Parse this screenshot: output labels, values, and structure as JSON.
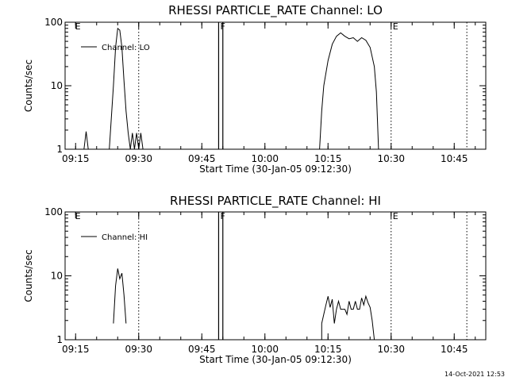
{
  "footer": {
    "timestamp": "14-Oct-2021 12:53"
  },
  "chart_data": [
    {
      "type": "line",
      "title": "RHESSI PARTICLE_RATE Channel: LO",
      "xlabel": "Start Time (30-Jan-05 09:12:30)",
      "ylabel": "Counts/sec",
      "y_scale": "log",
      "ylim": [
        1,
        100
      ],
      "xlim": [
        "09:12:30",
        "10:52:30"
      ],
      "x_ticks": [
        "09:15",
        "09:30",
        "09:45",
        "10:00",
        "10:15",
        "10:30",
        "10:45"
      ],
      "y_ticks": [
        "1",
        "10",
        "100"
      ],
      "grid": false,
      "legend_position": "top-left",
      "series": [
        {
          "name": "Channel: LO",
          "color": "#000000",
          "segments": [
            [
              [
                "09:17:00",
                1
              ],
              [
                "09:17:30",
                1.9
              ],
              [
                "09:18:00",
                1
              ]
            ],
            [
              [
                "09:23:00",
                1
              ],
              [
                "09:24:00",
                10
              ],
              [
                "09:24:30",
                40
              ],
              [
                "09:25:00",
                80
              ],
              [
                "09:25:30",
                75
              ],
              [
                "09:26:00",
                40
              ],
              [
                "09:26:30",
                12
              ],
              [
                "09:27:00",
                4
              ],
              [
                "09:27:30",
                1.8
              ],
              [
                "09:28:00",
                1
              ]
            ],
            [
              [
                "09:28:00",
                1
              ],
              [
                "09:28:30",
                1.8
              ],
              [
                "09:29:00",
                1
              ],
              [
                "09:29:30",
                1.8
              ],
              [
                "09:30:00",
                1
              ],
              [
                "09:30:30",
                1.8
              ],
              [
                "09:31:00",
                1
              ]
            ],
            [
              [
                "10:13:00",
                1
              ],
              [
                "10:13:30",
                4
              ],
              [
                "10:14:00",
                10
              ],
              [
                "10:15:00",
                25
              ],
              [
                "10:16:00",
                45
              ],
              [
                "10:17:00",
                60
              ],
              [
                "10:18:00",
                68
              ],
              [
                "10:19:00",
                60
              ],
              [
                "10:20:00",
                55
              ],
              [
                "10:21:00",
                57
              ],
              [
                "10:22:00",
                50
              ],
              [
                "10:23:00",
                57
              ],
              [
                "10:24:00",
                52
              ],
              [
                "10:25:00",
                40
              ],
              [
                "10:26:00",
                20
              ],
              [
                "10:26:30",
                8
              ],
              [
                "10:27:00",
                1
              ]
            ]
          ]
        }
      ],
      "annotations": [
        {
          "label": "E",
          "time": "09:14:30",
          "line": false
        },
        {
          "label": "",
          "time": "09:30:00",
          "line": true
        },
        {
          "label": "F",
          "time": "09:49:00",
          "line": true
        },
        {
          "label": "",
          "time": "09:50:00",
          "line": true
        },
        {
          "label": "E",
          "time": "10:30:00",
          "line": true
        },
        {
          "label": "",
          "time": "10:48:00",
          "line": true
        }
      ]
    },
    {
      "type": "line",
      "title": "RHESSI PARTICLE_RATE Channel: HI",
      "xlabel": "Start Time (30-Jan-05 09:12:30)",
      "ylabel": "Counts/sec",
      "y_scale": "log",
      "ylim": [
        1,
        100
      ],
      "xlim": [
        "09:12:30",
        "10:52:30"
      ],
      "x_ticks": [
        "09:15",
        "09:30",
        "09:45",
        "10:00",
        "10:15",
        "10:30",
        "10:45"
      ],
      "y_ticks": [
        "1",
        "10",
        "100"
      ],
      "grid": false,
      "legend_position": "top-left",
      "series": [
        {
          "name": "Channel: HI",
          "color": "#000000",
          "segments": [
            [
              [
                "09:24:00",
                1.8
              ],
              [
                "09:24:30",
                7
              ],
              [
                "09:25:00",
                13
              ],
              [
                "09:25:30",
                9
              ],
              [
                "09:26:00",
                11
              ],
              [
                "09:26:30",
                5
              ],
              [
                "09:27:00",
                1.8
              ]
            ],
            [
              [
                "10:13:30",
                1
              ],
              [
                "10:13:30",
                1.8
              ],
              [
                "10:14:00",
                2.5
              ],
              [
                "10:14:30",
                3.5
              ],
              [
                "10:15:00",
                4.8
              ],
              [
                "10:15:30",
                3.2
              ],
              [
                "10:16:00",
                4.3
              ],
              [
                "10:16:30",
                1.8
              ],
              [
                "10:17:00",
                3
              ],
              [
                "10:17:30",
                4
              ],
              [
                "10:18:00",
                3
              ],
              [
                "10:19:00",
                3
              ],
              [
                "10:19:30",
                2.5
              ],
              [
                "10:20:00",
                4
              ],
              [
                "10:20:30",
                3
              ],
              [
                "10:21:00",
                3
              ],
              [
                "10:21:30",
                4
              ],
              [
                "10:22:00",
                3
              ],
              [
                "10:22:30",
                3
              ],
              [
                "10:23:00",
                4.5
              ],
              [
                "10:23:30",
                3.5
              ],
              [
                "10:24:00",
                4.8
              ],
              [
                "10:24:30",
                3.8
              ],
              [
                "10:25:00",
                3.2
              ],
              [
                "10:25:30",
                2
              ],
              [
                "10:26:00",
                1
              ]
            ]
          ]
        }
      ],
      "annotations": [
        {
          "label": "E",
          "time": "09:14:30",
          "line": false
        },
        {
          "label": "",
          "time": "09:30:00",
          "line": true
        },
        {
          "label": "F",
          "time": "09:49:00",
          "line": true
        },
        {
          "label": "",
          "time": "09:50:00",
          "line": true
        },
        {
          "label": "E",
          "time": "10:30:00",
          "line": true
        },
        {
          "label": "",
          "time": "10:48:00",
          "line": true
        }
      ]
    }
  ]
}
